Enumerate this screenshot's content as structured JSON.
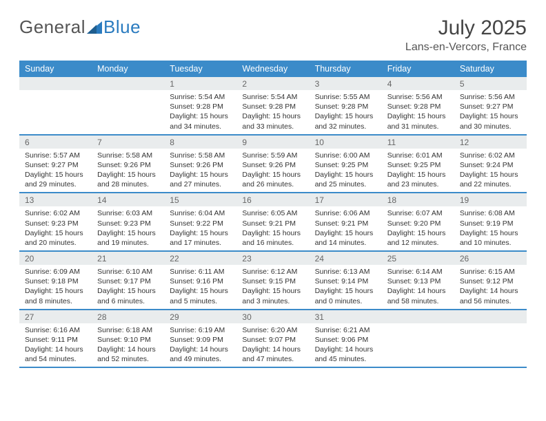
{
  "logo": {
    "part1": "General",
    "part2": "Blue"
  },
  "title": "July 2025",
  "location": "Lans-en-Vercors, France",
  "colors": {
    "header_bg": "#3b8bc9",
    "daynum_bg": "#e9eced",
    "rule": "#3b8bc9"
  },
  "weekdays": [
    "Sunday",
    "Monday",
    "Tuesday",
    "Wednesday",
    "Thursday",
    "Friday",
    "Saturday"
  ],
  "weeks": [
    [
      {
        "n": "",
        "sunrise": "",
        "sunset": "",
        "daylight": ""
      },
      {
        "n": "",
        "sunrise": "",
        "sunset": "",
        "daylight": ""
      },
      {
        "n": "1",
        "sunrise": "Sunrise: 5:54 AM",
        "sunset": "Sunset: 9:28 PM",
        "daylight": "Daylight: 15 hours and 34 minutes."
      },
      {
        "n": "2",
        "sunrise": "Sunrise: 5:54 AM",
        "sunset": "Sunset: 9:28 PM",
        "daylight": "Daylight: 15 hours and 33 minutes."
      },
      {
        "n": "3",
        "sunrise": "Sunrise: 5:55 AM",
        "sunset": "Sunset: 9:28 PM",
        "daylight": "Daylight: 15 hours and 32 minutes."
      },
      {
        "n": "4",
        "sunrise": "Sunrise: 5:56 AM",
        "sunset": "Sunset: 9:28 PM",
        "daylight": "Daylight: 15 hours and 31 minutes."
      },
      {
        "n": "5",
        "sunrise": "Sunrise: 5:56 AM",
        "sunset": "Sunset: 9:27 PM",
        "daylight": "Daylight: 15 hours and 30 minutes."
      }
    ],
    [
      {
        "n": "6",
        "sunrise": "Sunrise: 5:57 AM",
        "sunset": "Sunset: 9:27 PM",
        "daylight": "Daylight: 15 hours and 29 minutes."
      },
      {
        "n": "7",
        "sunrise": "Sunrise: 5:58 AM",
        "sunset": "Sunset: 9:26 PM",
        "daylight": "Daylight: 15 hours and 28 minutes."
      },
      {
        "n": "8",
        "sunrise": "Sunrise: 5:58 AM",
        "sunset": "Sunset: 9:26 PM",
        "daylight": "Daylight: 15 hours and 27 minutes."
      },
      {
        "n": "9",
        "sunrise": "Sunrise: 5:59 AM",
        "sunset": "Sunset: 9:26 PM",
        "daylight": "Daylight: 15 hours and 26 minutes."
      },
      {
        "n": "10",
        "sunrise": "Sunrise: 6:00 AM",
        "sunset": "Sunset: 9:25 PM",
        "daylight": "Daylight: 15 hours and 25 minutes."
      },
      {
        "n": "11",
        "sunrise": "Sunrise: 6:01 AM",
        "sunset": "Sunset: 9:25 PM",
        "daylight": "Daylight: 15 hours and 23 minutes."
      },
      {
        "n": "12",
        "sunrise": "Sunrise: 6:02 AM",
        "sunset": "Sunset: 9:24 PM",
        "daylight": "Daylight: 15 hours and 22 minutes."
      }
    ],
    [
      {
        "n": "13",
        "sunrise": "Sunrise: 6:02 AM",
        "sunset": "Sunset: 9:23 PM",
        "daylight": "Daylight: 15 hours and 20 minutes."
      },
      {
        "n": "14",
        "sunrise": "Sunrise: 6:03 AM",
        "sunset": "Sunset: 9:23 PM",
        "daylight": "Daylight: 15 hours and 19 minutes."
      },
      {
        "n": "15",
        "sunrise": "Sunrise: 6:04 AM",
        "sunset": "Sunset: 9:22 PM",
        "daylight": "Daylight: 15 hours and 17 minutes."
      },
      {
        "n": "16",
        "sunrise": "Sunrise: 6:05 AM",
        "sunset": "Sunset: 9:21 PM",
        "daylight": "Daylight: 15 hours and 16 minutes."
      },
      {
        "n": "17",
        "sunrise": "Sunrise: 6:06 AM",
        "sunset": "Sunset: 9:21 PM",
        "daylight": "Daylight: 15 hours and 14 minutes."
      },
      {
        "n": "18",
        "sunrise": "Sunrise: 6:07 AM",
        "sunset": "Sunset: 9:20 PM",
        "daylight": "Daylight: 15 hours and 12 minutes."
      },
      {
        "n": "19",
        "sunrise": "Sunrise: 6:08 AM",
        "sunset": "Sunset: 9:19 PM",
        "daylight": "Daylight: 15 hours and 10 minutes."
      }
    ],
    [
      {
        "n": "20",
        "sunrise": "Sunrise: 6:09 AM",
        "sunset": "Sunset: 9:18 PM",
        "daylight": "Daylight: 15 hours and 8 minutes."
      },
      {
        "n": "21",
        "sunrise": "Sunrise: 6:10 AM",
        "sunset": "Sunset: 9:17 PM",
        "daylight": "Daylight: 15 hours and 6 minutes."
      },
      {
        "n": "22",
        "sunrise": "Sunrise: 6:11 AM",
        "sunset": "Sunset: 9:16 PM",
        "daylight": "Daylight: 15 hours and 5 minutes."
      },
      {
        "n": "23",
        "sunrise": "Sunrise: 6:12 AM",
        "sunset": "Sunset: 9:15 PM",
        "daylight": "Daylight: 15 hours and 3 minutes."
      },
      {
        "n": "24",
        "sunrise": "Sunrise: 6:13 AM",
        "sunset": "Sunset: 9:14 PM",
        "daylight": "Daylight: 15 hours and 0 minutes."
      },
      {
        "n": "25",
        "sunrise": "Sunrise: 6:14 AM",
        "sunset": "Sunset: 9:13 PM",
        "daylight": "Daylight: 14 hours and 58 minutes."
      },
      {
        "n": "26",
        "sunrise": "Sunrise: 6:15 AM",
        "sunset": "Sunset: 9:12 PM",
        "daylight": "Daylight: 14 hours and 56 minutes."
      }
    ],
    [
      {
        "n": "27",
        "sunrise": "Sunrise: 6:16 AM",
        "sunset": "Sunset: 9:11 PM",
        "daylight": "Daylight: 14 hours and 54 minutes."
      },
      {
        "n": "28",
        "sunrise": "Sunrise: 6:18 AM",
        "sunset": "Sunset: 9:10 PM",
        "daylight": "Daylight: 14 hours and 52 minutes."
      },
      {
        "n": "29",
        "sunrise": "Sunrise: 6:19 AM",
        "sunset": "Sunset: 9:09 PM",
        "daylight": "Daylight: 14 hours and 49 minutes."
      },
      {
        "n": "30",
        "sunrise": "Sunrise: 6:20 AM",
        "sunset": "Sunset: 9:07 PM",
        "daylight": "Daylight: 14 hours and 47 minutes."
      },
      {
        "n": "31",
        "sunrise": "Sunrise: 6:21 AM",
        "sunset": "Sunset: 9:06 PM",
        "daylight": "Daylight: 14 hours and 45 minutes."
      },
      {
        "n": "",
        "sunrise": "",
        "sunset": "",
        "daylight": ""
      },
      {
        "n": "",
        "sunrise": "",
        "sunset": "",
        "daylight": ""
      }
    ]
  ]
}
